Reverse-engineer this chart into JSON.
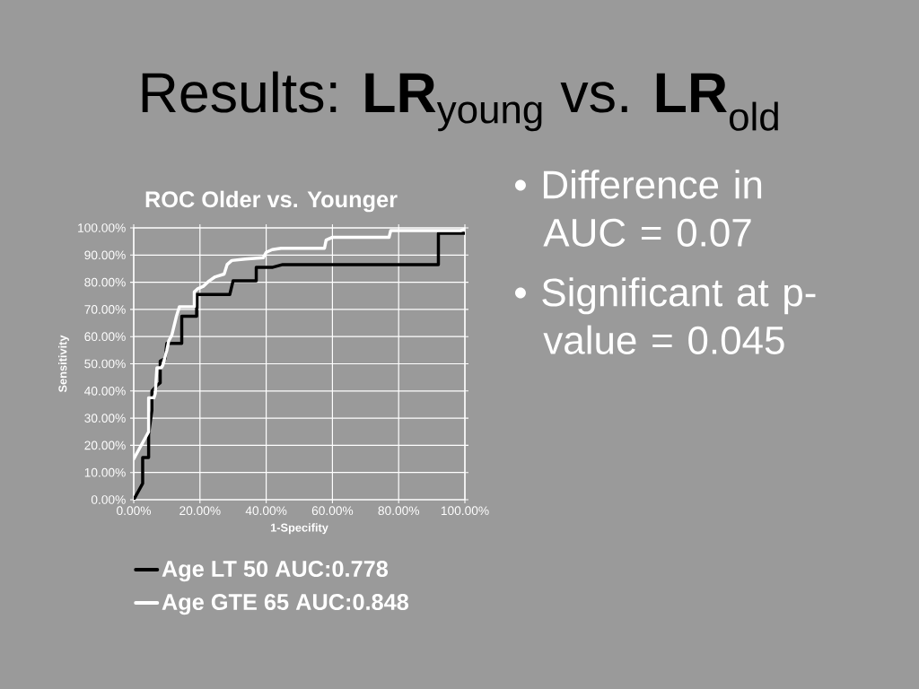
{
  "chart_data": {
    "type": "line",
    "title": "Results: **LR**$_{young}$ vs. **LR**$_{old}$",
    "subtitle": "ROC Older vs. Younger",
    "xlabel": "1-Specifity",
    "ylabel": "Sensitivity",
    "annotations": [
      "• Difference in AUC = 0.07",
      "• Significant at p-value = 0.045"
    ],
    "series": [
      {
        "name": "Age LT 50 AUC:0.778",
        "color": "#000000",
        "x": [
          0,
          2.7,
          2.7,
          4.5,
          4.5,
          5.5,
          5.5,
          7,
          8,
          8,
          9.5,
          10,
          14.5,
          14.5,
          19,
          19,
          29,
          30,
          37,
          37,
          42,
          45,
          92,
          92,
          100
        ],
        "values": [
          0,
          6,
          15.5,
          15.5,
          24,
          33,
          40,
          42,
          43,
          51,
          52,
          57.5,
          57.5,
          67.5,
          67.5,
          75.5,
          75.5,
          80.5,
          80.5,
          85.5,
          85.5,
          86.5,
          86.5,
          98,
          98
        ]
      },
      {
        "name": "Age GTE 65 AUC:0.848",
        "color": "#ffffff",
        "x": [
          0,
          4.5,
          4.5,
          6.1,
          6.5,
          7,
          8.3,
          8.8,
          10,
          10.6,
          11.5,
          12.9,
          13.8,
          18.3,
          18.3,
          19.2,
          21,
          22.8,
          24.6,
          27.3,
          28.2,
          29.6,
          33.7,
          39.1,
          40,
          41.8,
          44.5,
          57.6,
          58.1,
          59.9,
          77.1,
          77.6,
          98.7,
          100
        ],
        "values": [
          15,
          25,
          37.5,
          37.5,
          39,
          48.5,
          48.5,
          49.5,
          55,
          58.5,
          60.5,
          67.5,
          71,
          71,
          76.5,
          77.5,
          78.5,
          80.5,
          82,
          83,
          86.5,
          88,
          88.5,
          89,
          91,
          92,
          92.5,
          92.5,
          95.5,
          96.5,
          96.5,
          99,
          99,
          99.5
        ]
      }
    ],
    "xlim": [
      0,
      100
    ],
    "ylim": [
      0,
      100
    ],
    "xticks": [
      {
        "value": 0,
        "label": "0.00%"
      },
      {
        "value": 20,
        "label": "20.00%"
      },
      {
        "value": 40,
        "label": "40.00%"
      },
      {
        "value": 60,
        "label": "60.00%"
      },
      {
        "value": 80,
        "label": "80.00%"
      },
      {
        "value": 100,
        "label": "100.00%"
      }
    ],
    "yticks": [
      {
        "value": 0,
        "label": "0.00%"
      },
      {
        "value": 10,
        "label": "10.00%"
      },
      {
        "value": 20,
        "label": "20.00%"
      },
      {
        "value": 30,
        "label": "30.00%"
      },
      {
        "value": 40,
        "label": "40.00%"
      },
      {
        "value": 50,
        "label": "50.00%"
      },
      {
        "value": 60,
        "label": "60.00%"
      },
      {
        "value": 70,
        "label": "70.00%"
      },
      {
        "value": 80,
        "label": "80.00%"
      },
      {
        "value": 90,
        "label": "90.00%"
      },
      {
        "value": 100,
        "label": "100.00%"
      }
    ],
    "grid": true,
    "legend": "bottom",
    "marker": "none",
    "line_style": "solid"
  }
}
